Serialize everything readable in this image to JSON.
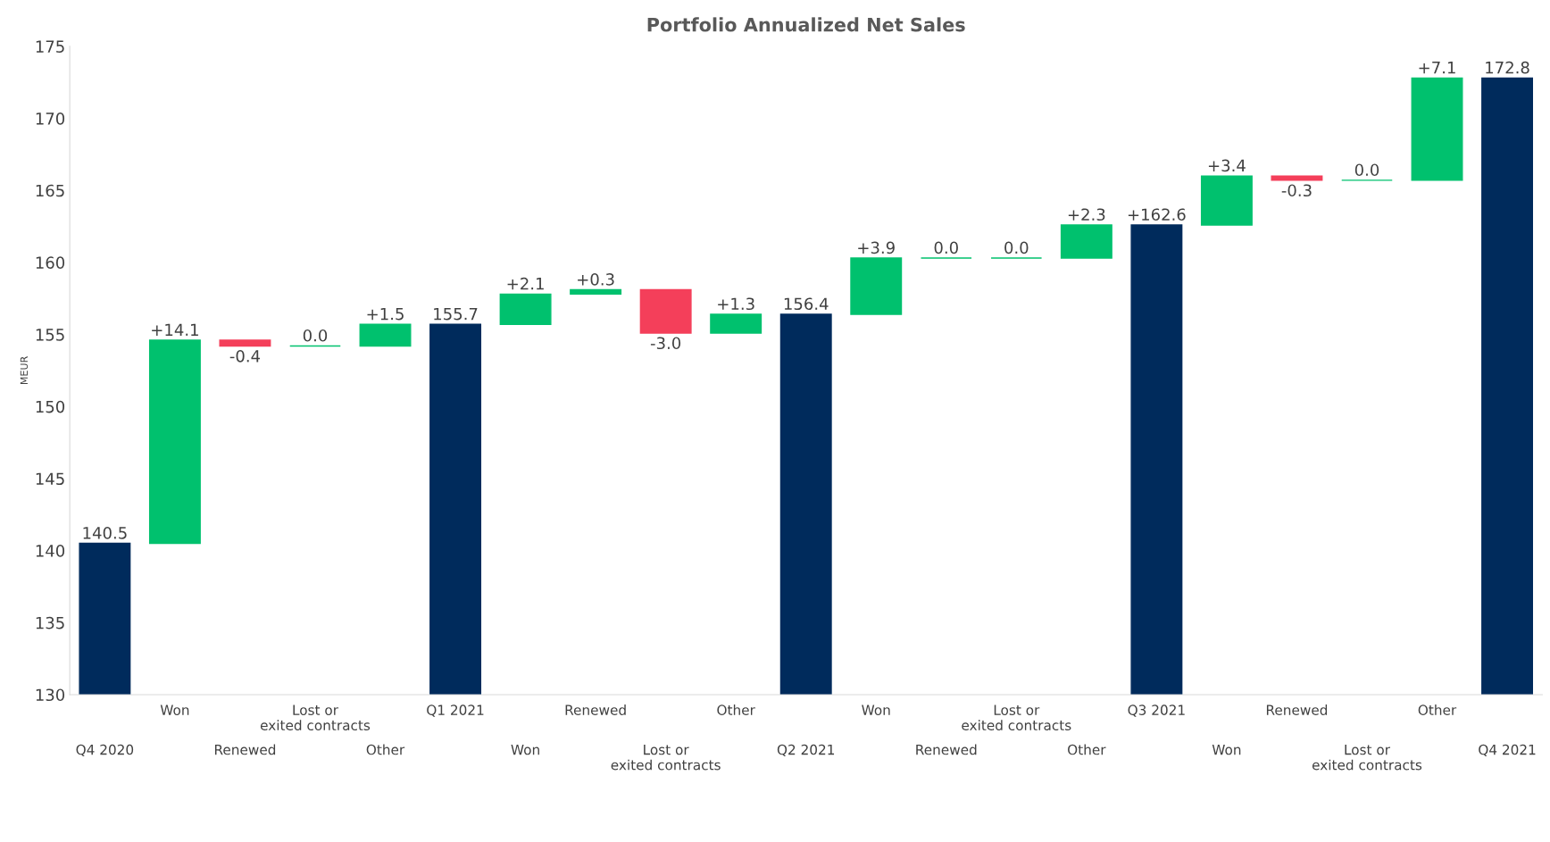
{
  "chart_data": {
    "type": "bar",
    "title": "Portfolio Annualized Net Sales",
    "ylabel": "MEUR",
    "categories": [
      "Q4 2020",
      "Won",
      "Renewed",
      "Lost or\nexited contracts",
      "Other",
      "Q1 2021",
      "Won",
      "Renewed",
      "Lost or\nexited contracts",
      "Other",
      "Q2 2021",
      "Won",
      "Renewed",
      "Lost or\nexited contracts",
      "Other",
      "Q3 2021",
      "Won",
      "Renewed",
      "Lost or\nexited contracts",
      "Other",
      "Q4 2021"
    ],
    "values": [
      140.5,
      14.1,
      -0.4,
      0.0,
      1.5,
      155.7,
      2.1,
      0.3,
      -3.0,
      1.3,
      156.4,
      3.9,
      0.0,
      0.0,
      2.3,
      162.6,
      3.4,
      -0.3,
      0.0,
      7.1,
      172.8
    ],
    "base": [
      0,
      140.5,
      154.6,
      154.2,
      154.2,
      0,
      155.7,
      157.8,
      158.1,
      155.1,
      0,
      156.4,
      160.3,
      160.3,
      160.3,
      0,
      162.6,
      166.0,
      165.7,
      165.7,
      0
    ],
    "colors": [
      "#002b5c",
      "#00c16e",
      "#f43f5a",
      "#00c16e",
      "#00c16e",
      "#002b5c",
      "#00c16e",
      "#00c16e",
      "#f43f5a",
      "#00c16e",
      "#002b5c",
      "#00c16e",
      "#00c16e",
      "#00c16e",
      "#00c16e",
      "#002b5c",
      "#00c16e",
      "#f43f5a",
      "#00c16e",
      "#00c16e",
      "#002b5c"
    ],
    "value_labels": [
      "140.5",
      "+14.1",
      "-0.4",
      "0.0",
      "+1.5",
      "155.7",
      "+2.1",
      "+0.3",
      "-3.0",
      "+1.3",
      "156.4",
      "+3.9",
      "0.0",
      "0.0",
      "+2.3",
      "+162.6",
      "+3.4",
      "-0.3",
      "0.0",
      "+7.1",
      "172.8"
    ],
    "ylim": [
      130,
      175
    ],
    "yticks": [
      130,
      135,
      140,
      145,
      150,
      155,
      160,
      165,
      170,
      175
    ],
    "grid": false,
    "legend": false
  }
}
